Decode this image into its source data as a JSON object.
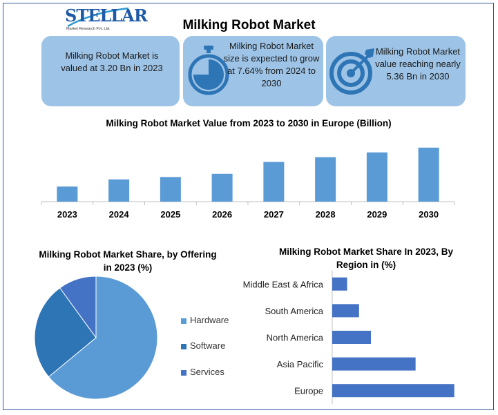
{
  "logo": {
    "name": "STELLAR",
    "sub": "Market Research Pvt. Ltd."
  },
  "title": "Milking Robot Market",
  "cards": [
    {
      "text": "Milking Robot Market is valued at 3.20 Bn in 2023",
      "icon": "none"
    },
    {
      "text": "Milking Robot Market size is expected to grow at 7.64% from 2024 to 2030",
      "icon": "stopwatch-icon"
    },
    {
      "text": "Milking Robot Market value reaching nearly 5.36 Bn in 2030",
      "icon": "target-icon"
    }
  ],
  "colors": {
    "bar": "#5b9bd5",
    "hbar": "#4472c4",
    "card": "#9dc3e6",
    "hardware": "#5b9bd5",
    "software": "#2e75b6",
    "services": "#4472c4"
  },
  "chart_data": [
    {
      "type": "bar",
      "title": "Milking Robot Market Value from 2023 to 2030 in Europe (Billion)",
      "categories": [
        "2023",
        "2024",
        "2025",
        "2026",
        "2027",
        "2028",
        "2029",
        "2030"
      ],
      "values": [
        0.95,
        1.4,
        1.55,
        1.75,
        2.5,
        2.8,
        3.1,
        3.4
      ],
      "ylim": [
        0,
        4
      ],
      "grid": false
    },
    {
      "type": "pie",
      "title": "Milking Robot Market Share, by Offering in 2023 (%)",
      "labels": [
        "Hardware",
        "Software",
        "Services"
      ],
      "values": [
        64,
        26,
        10
      ],
      "legend": "right"
    },
    {
      "type": "bar",
      "orientation": "horizontal",
      "title": "Milking Robot Market Share In 2023, By Region in (%)",
      "categories": [
        "Middle East & Africa",
        "South America",
        "North America",
        "Asia Pacific",
        "Europe"
      ],
      "values": [
        5,
        9,
        13,
        28,
        41
      ],
      "xlim": [
        0,
        42
      ]
    }
  ]
}
